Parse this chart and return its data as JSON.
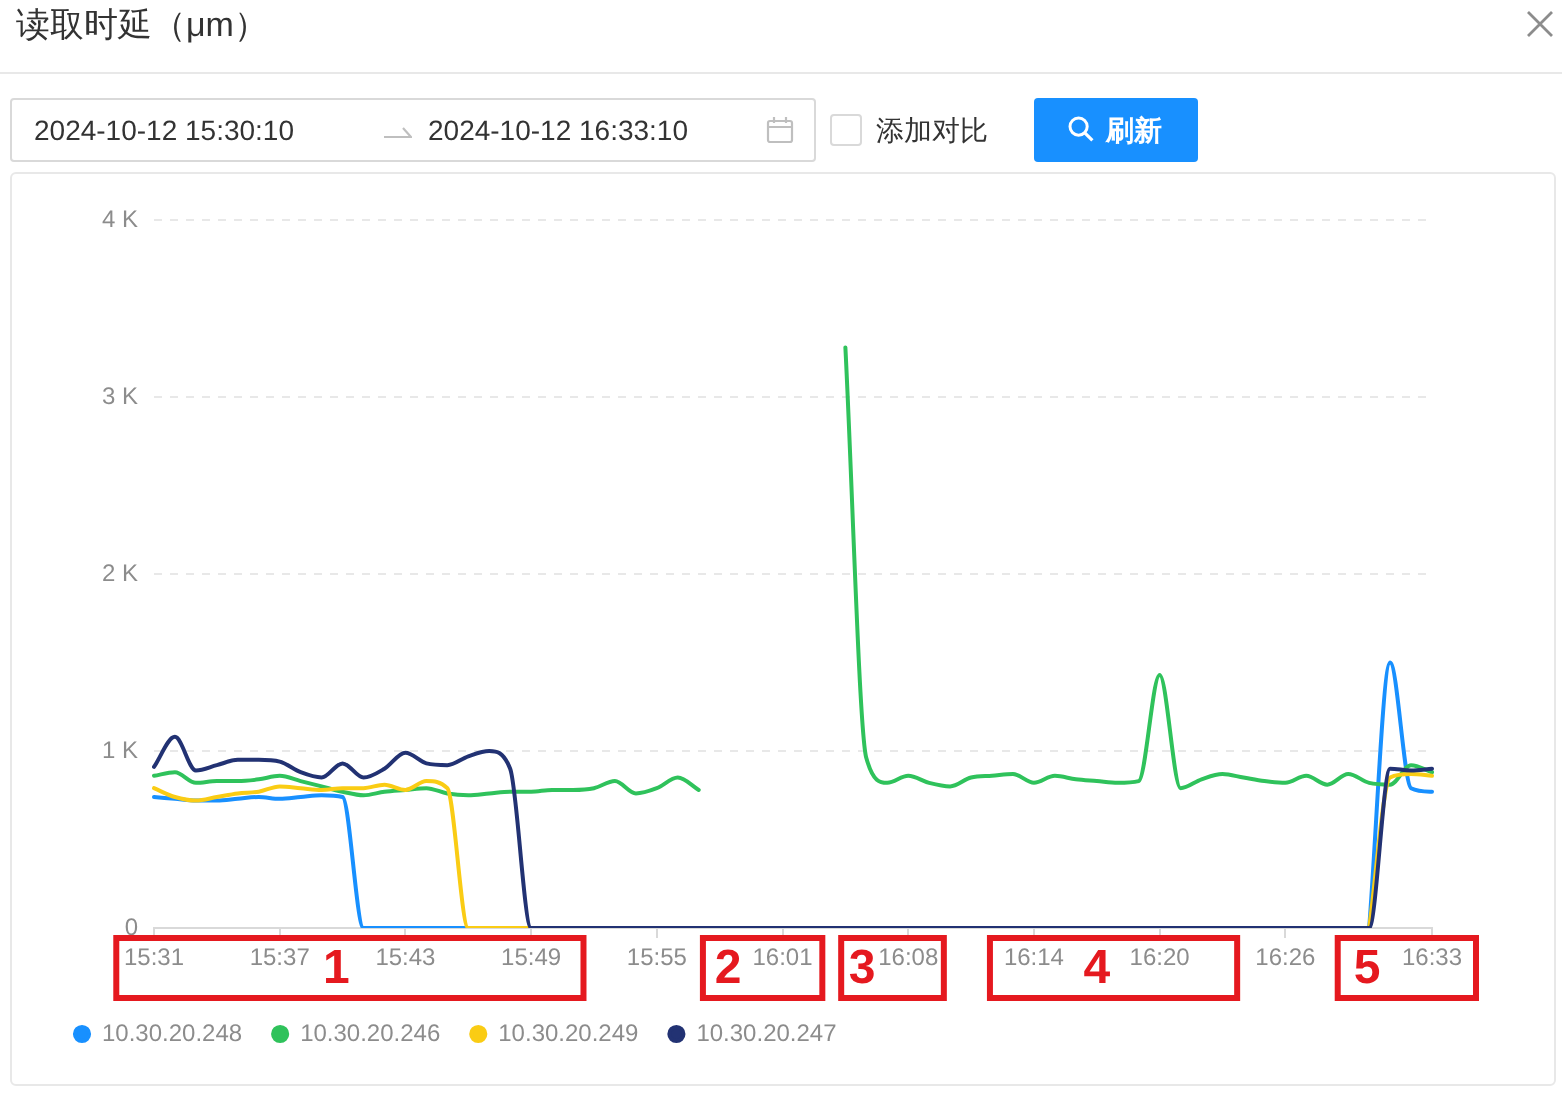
{
  "chart_data": {
    "type": "line",
    "title": "读取时延（μm）",
    "annotations": [
      "2024-10-12 15:30:10",
      "2024-10-12 16:33:10",
      "添加对比",
      "刷新",
      "1",
      "2",
      "3",
      "4",
      "5"
    ],
    "categories": [
      "15:31",
      null,
      null,
      null,
      null,
      null,
      "15:37",
      null,
      null,
      null,
      null,
      null,
      "15:43",
      null,
      null,
      null,
      null,
      null,
      "15:49",
      null,
      null,
      null,
      null,
      null,
      "15:55",
      null,
      null,
      null,
      null,
      null,
      "16:01",
      null,
      null,
      null,
      null,
      null,
      "16:08",
      null,
      null,
      null,
      null,
      null,
      "16:14",
      null,
      null,
      null,
      null,
      null,
      "16:20",
      null,
      null,
      null,
      null,
      null,
      "16:26",
      null,
      null,
      null,
      null,
      null,
      null,
      "16:33"
    ],
    "series": [
      {
        "name": "10.30.20.248",
        "color": "#1890ff",
        "values": [
          740,
          730,
          720,
          720,
          730,
          740,
          730,
          740,
          750,
          740,
          0,
          0,
          0,
          0,
          0,
          0,
          null,
          null,
          null,
          null,
          null,
          null,
          null,
          null,
          null,
          null,
          null,
          null,
          null,
          null,
          null,
          null,
          null,
          null,
          null,
          null,
          null,
          null,
          null,
          null,
          null,
          null,
          null,
          null,
          null,
          null,
          null,
          null,
          null,
          null,
          null,
          null,
          null,
          null,
          null,
          null,
          null,
          null,
          0,
          1500,
          790,
          770
        ]
      },
      {
        "name": "10.30.20.246",
        "color": "#2fc25b",
        "values": [
          860,
          880,
          820,
          830,
          830,
          840,
          860,
          830,
          800,
          770,
          750,
          770,
          780,
          790,
          760,
          750,
          760,
          770,
          770,
          780,
          780,
          790,
          830,
          760,
          790,
          850,
          780,
          null,
          null,
          null,
          null,
          null,
          null,
          3280,
          960,
          820,
          860,
          820,
          800,
          850,
          860,
          870,
          820,
          860,
          840,
          830,
          820,
          830,
          1430,
          790,
          840,
          870,
          850,
          830,
          820,
          860,
          810,
          870,
          820,
          810,
          920,
          880
        ]
      },
      {
        "name": "10.30.20.249",
        "color": "#facc14",
        "values": [
          790,
          740,
          720,
          740,
          760,
          770,
          800,
          790,
          780,
          790,
          790,
          810,
          780,
          830,
          790,
          0,
          0,
          0,
          0,
          null,
          null,
          null,
          null,
          null,
          null,
          null,
          null,
          null,
          null,
          null,
          null,
          null,
          null,
          null,
          null,
          null,
          null,
          null,
          null,
          null,
          null,
          null,
          null,
          null,
          null,
          null,
          null,
          null,
          null,
          null,
          null,
          null,
          null,
          null,
          null,
          null,
          null,
          null,
          0,
          850,
          870,
          860
        ]
      },
      {
        "name": "10.30.20.247",
        "color": "#223273",
        "values": [
          910,
          1080,
          890,
          920,
          950,
          950,
          940,
          880,
          850,
          930,
          850,
          900,
          990,
          930,
          920,
          970,
          1000,
          900,
          0,
          0,
          0,
          0,
          0,
          0,
          0,
          0,
          0,
          0,
          0,
          0,
          0,
          0,
          0,
          0,
          0,
          0,
          0,
          0,
          0,
          0,
          0,
          0,
          0,
          0,
          0,
          0,
          0,
          0,
          0,
          0,
          0,
          0,
          0,
          0,
          0,
          0,
          0,
          0,
          0,
          900,
          890,
          900
        ]
      }
    ],
    "ylim": [
      0,
      4000
    ],
    "yticks": [
      0,
      {
        "value": 1000,
        "label": "1 K"
      },
      {
        "value": 2000,
        "label": "2 K"
      },
      {
        "value": 3000,
        "label": "3 K"
      },
      {
        "value": 4000,
        "label": "4 K"
      }
    ],
    "grid": "y",
    "legend": "bottom left",
    "marker": "none",
    "line_style": "solid"
  }
}
